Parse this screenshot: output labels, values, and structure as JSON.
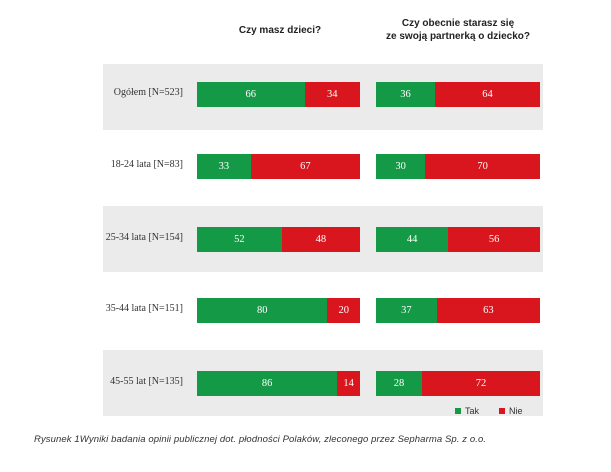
{
  "chart_data": {
    "type": "bar",
    "stacked": true,
    "orientation": "horizontal",
    "categories": [
      "Ogółem [N=523]",
      "18-24 lata [N=83]",
      "25-34 lata [N=154]",
      "35-44 lata [N=151]",
      "45-55 lat [N=135]"
    ],
    "panels": [
      {
        "title": "Czy masz dzieci?",
        "series": [
          {
            "name": "Tak",
            "values": [
              66,
              33,
              52,
              80,
              86
            ]
          },
          {
            "name": "Nie",
            "values": [
              34,
              67,
              48,
              20,
              14
            ]
          }
        ]
      },
      {
        "title": "Czy obecnie starasz się\nze swoją partnerką o dziecko?",
        "series": [
          {
            "name": "Tak",
            "values": [
              36,
              30,
              44,
              37,
              28
            ]
          },
          {
            "name": "Nie",
            "values": [
              64,
              70,
              56,
              63,
              72
            ]
          }
        ]
      }
    ],
    "legend": [
      "Tak",
      "Nie"
    ],
    "legend_position": "bottom-right",
    "colors": {
      "Tak": "#149946",
      "Nie": "#d9151d"
    },
    "ylim": [
      0,
      100
    ]
  },
  "headers": {
    "left_line1": "Czy masz dzieci?",
    "right_line1": "Czy obecnie starasz się",
    "right_line2": "ze swoją partnerką o dziecko?"
  },
  "legend": {
    "tak": "Tak",
    "nie": "Nie"
  },
  "caption": "Rysunek 1Wyniki badania opinii publicznej dot. płodności Polaków, zleconego przez Sepharma Sp. z o.o."
}
